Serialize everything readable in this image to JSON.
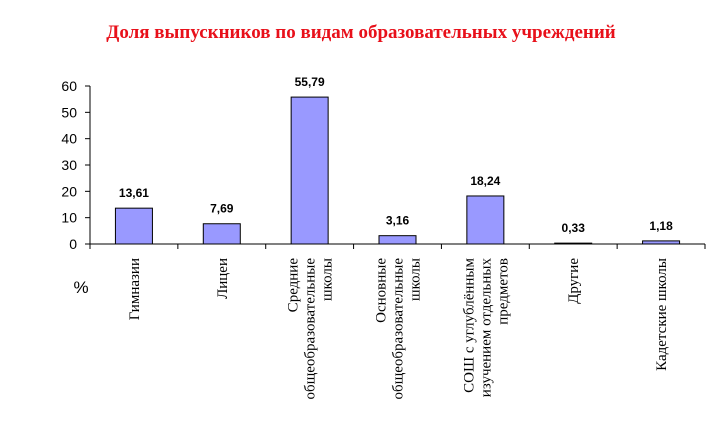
{
  "chart_data": {
    "type": "bar",
    "title": "Доля выпускников по видам образовательных учреждений",
    "ylabel": "%",
    "xlabel": "",
    "ylim": [
      0,
      60
    ],
    "yticks": [
      "0",
      "10",
      "20",
      "30",
      "40",
      "50",
      "60"
    ],
    "categories": [
      [
        "Гимназии"
      ],
      [
        "Лицеи"
      ],
      [
        "Средние",
        "общеобразовательные",
        "школы"
      ],
      [
        "Основные",
        "общеобразовательные",
        "школы"
      ],
      [
        "СОШ с углублённым",
        "изучением отдельных",
        "предметов"
      ],
      [
        "Другие"
      ],
      [
        "Кадетские школы"
      ]
    ],
    "values": [
      13.61,
      7.69,
      55.79,
      3.16,
      18.24,
      0.33,
      1.18
    ],
    "value_labels": [
      "13,61",
      "7,69",
      "55,79",
      "3,16",
      "18,24",
      "0,33",
      "1,18"
    ],
    "bar_color": "#9999ff",
    "grid": false,
    "legend": "none"
  }
}
